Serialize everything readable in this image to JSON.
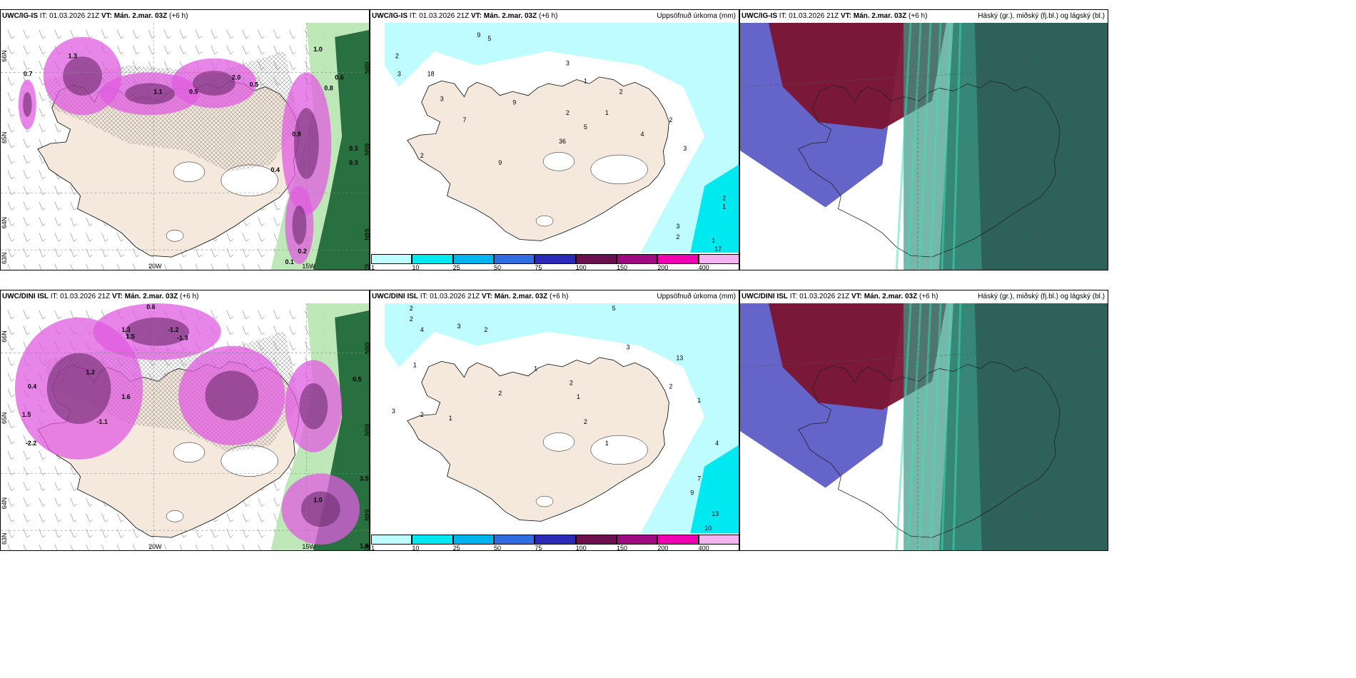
{
  "rows": [
    {
      "model": "UWC/IG-IS",
      "it_label": "IT:",
      "it_value": "01.03.2026 21Z",
      "vt_label": "VT:",
      "vt_value": "Mán. 2.mar. 03Z",
      "lead": "(+6 h)"
    },
    {
      "model": "UWC/DINI ISL",
      "it_label": "IT:",
      "it_value": "01.03.2026 21Z",
      "vt_label": "VT:",
      "vt_value": "Mán. 2.mar. 03Z",
      "lead": "(+6 h)"
    }
  ],
  "precip_title": "Uppsöfnuð úrkoma (mm)",
  "cloud_title": "Háský (gr.), miðský (fj.bl.) og lágský (bl.)",
  "axis_labels": {
    "lon": "20W",
    "lon2": "15W",
    "lat1": "66N",
    "lat2": "65N",
    "lat3": "64N",
    "lat4": "63N"
  },
  "colorbar": {
    "labels": [
      "1",
      "10",
      "25",
      "50",
      "75",
      "100",
      "150",
      "200",
      "400"
    ],
    "colors": [
      "#bffcff",
      "#00e8f0",
      "#00b4f0",
      "#2f6de0",
      "#2a2ab8",
      "#6b0f4f",
      "#a00a80",
      "#f000b0",
      "#f5b4f0"
    ]
  },
  "colors": {
    "land": "#f5e8dc",
    "precip_light": "#bffcff",
    "precip_mid": "#00e8f0",
    "pink": "#e05ce0",
    "purple": "#6b2a6b",
    "green_dark": "#0e5a2a",
    "green_light": "#b8e6b0",
    "cloud_maroon": "#7a1432",
    "cloud_blue": "#4a4ac0",
    "cloud_teal": "#3a9a88",
    "cloud_dark": "#2d5a55"
  },
  "precip_labels_top": [
    "2",
    "3",
    "9",
    "5",
    "3",
    "7",
    "2",
    "3",
    "1",
    "2",
    "1",
    "2",
    "1",
    "3",
    "2",
    "1",
    "17",
    "18",
    "9",
    "9",
    "36",
    "4",
    "3",
    "2",
    "5",
    "2"
  ],
  "precip_labels_bottom": [
    "2",
    "2",
    "4",
    "1",
    "3",
    "2",
    "1",
    "2",
    "1",
    "2",
    "1",
    "5",
    "3",
    "2",
    "13",
    "1",
    "4",
    "7",
    "9",
    "13",
    "10",
    "3",
    "2",
    "1",
    "2"
  ],
  "temp_labels_top": [
    "0.7",
    "1.3",
    "2.0",
    "0.5",
    "1.1",
    "0.9",
    "0.6",
    "0.3",
    "0.8",
    "0.5",
    "1.0",
    "0.4",
    "0.3",
    "0.2",
    "0.1"
  ],
  "temp_labels_bottom": [
    "0.6",
    "1.3",
    "1.5",
    "-1.2",
    "-1.3",
    "1.2",
    "0.4",
    "1.6",
    "-1.1",
    "1.5",
    "-2.2",
    "0.5",
    "3.5",
    "1.0",
    "1.6"
  ]
}
